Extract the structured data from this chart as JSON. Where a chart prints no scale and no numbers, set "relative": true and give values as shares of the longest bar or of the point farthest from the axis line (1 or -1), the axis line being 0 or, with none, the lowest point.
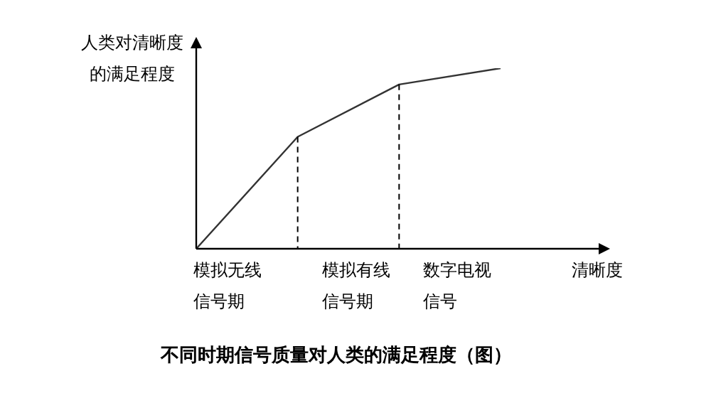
{
  "chart_data": {
    "type": "line",
    "title": "不同时期信号质量对人类的满足程度（图）",
    "xlabel": "清晰度",
    "ylabel": "人类对清晰度的满足程度",
    "relative": true,
    "categories": [
      null,
      null,
      null,
      null
    ],
    "series": [
      {
        "color": "#333333",
        "values": [
          0,
          0.62,
          0.91,
          1
        ]
      }
    ],
    "annotations": [
      "模拟无线信号期",
      "模拟有线信号期",
      "数字电视信号"
    ],
    "legend": false,
    "marker": "none",
    "line_style": "solid"
  }
}
